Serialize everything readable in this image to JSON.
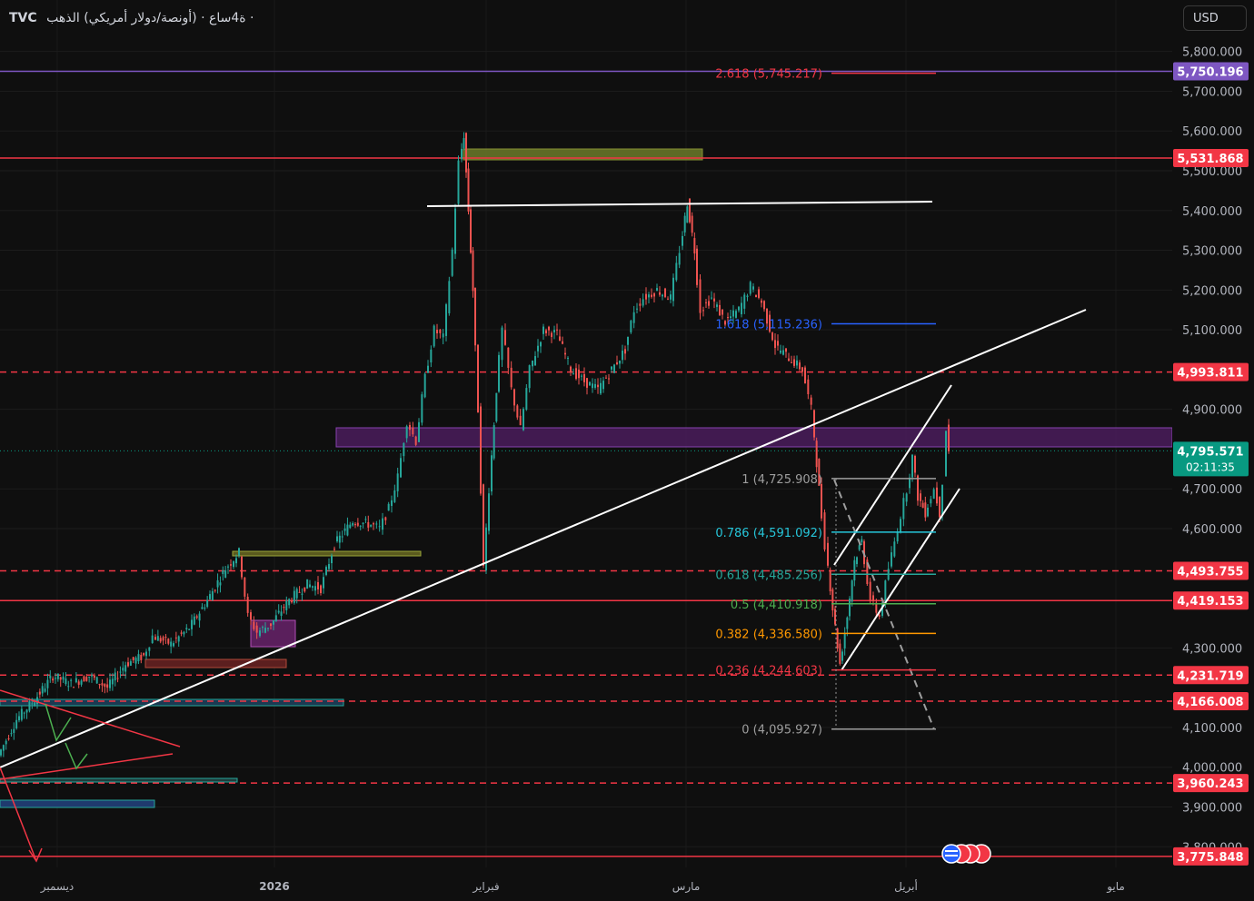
{
  "header": {
    "symbol": "TVC",
    "title": "ة4ساع · (أونصة/دولار أمريكي) الذهب ·"
  },
  "currency_button": "USD",
  "colors": {
    "bg": "#0f0f0f",
    "up": "#26a69a",
    "down": "#ef5350",
    "red_line": "#f23645",
    "purple_line": "#7e57c2",
    "price_tag": "#089981"
  },
  "chart_data": {
    "type": "candlestick",
    "title": "",
    "ylim": [
      3750,
      5870
    ],
    "y_ticks": [
      "5,800.000",
      "5,700.000",
      "5,600.000",
      "5,500.000",
      "5,400.000",
      "5,300.000",
      "5,200.000",
      "5,100.000",
      "4,900.000",
      "4,700.000",
      "4,600.000",
      "4,300.000",
      "4,100.000",
      "4,000.000",
      "3,900.000",
      "3,800.000"
    ],
    "x_ticks": [
      "ديسمبر",
      "2026",
      "فبراير",
      "مارس",
      "أبريل",
      "مايو"
    ],
    "last_price": {
      "value": 4795.571,
      "label": "4,795.571",
      "countdown": "02:11:35"
    },
    "horizontal_levels": [
      {
        "value": 5750.196,
        "label": "5,750.196",
        "style": "solid",
        "color": "#7e57c2"
      },
      {
        "value": 5531.868,
        "label": "5,531.868",
        "style": "solid",
        "color": "#f23645"
      },
      {
        "value": 4993.811,
        "label": "4,993.811",
        "style": "dashed",
        "color": "#f23645"
      },
      {
        "value": 4493.755,
        "label": "4,493.755",
        "style": "dashed",
        "color": "#f23645"
      },
      {
        "value": 4419.153,
        "label": "4,419.153",
        "style": "solid",
        "color": "#f23645"
      },
      {
        "value": 4231.719,
        "label": "4,231.719",
        "style": "dashed",
        "color": "#f23645"
      },
      {
        "value": 4166.008,
        "label": "4,166.008",
        "style": "dashed",
        "color": "#f23645"
      },
      {
        "value": 3960.243,
        "label": "3,960.243",
        "style": "dashed",
        "color": "#f23645"
      },
      {
        "value": 3775.848,
        "label": "3,775.848",
        "style": "solid",
        "color": "#f23645"
      }
    ],
    "fib_levels": [
      {
        "ratio": "2.618",
        "value": 5745.217,
        "label": "2.618 (5,745.217)",
        "color": "#f23645"
      },
      {
        "ratio": "1.618",
        "value": 5115.236,
        "label": "1.618 (5,115.236)",
        "color": "#2962ff"
      },
      {
        "ratio": "1",
        "value": 4725.908,
        "label": "1 (4,725.908)",
        "color": "#9e9e9e"
      },
      {
        "ratio": "0.786",
        "value": 4591.092,
        "label": "0.786 (4,591.092)",
        "color": "#26c6da"
      },
      {
        "ratio": "0.618",
        "value": 4485.256,
        "label": "0.618 (4,485.256)",
        "color": "#26a69a"
      },
      {
        "ratio": "0.5",
        "value": 4410.918,
        "label": "0.5 (4,410.918)",
        "color": "#4caf50"
      },
      {
        "ratio": "0.382",
        "value": 4336.58,
        "label": "0.382 (4,336.580)",
        "color": "#ff9800"
      },
      {
        "ratio": "0.236",
        "value": 4244.603,
        "label": "0.236 (4,244.603)",
        "color": "#f23645"
      },
      {
        "ratio": "0",
        "value": 4095.927,
        "label": "0 (4,095.927)",
        "color": "#9e9e9e"
      }
    ],
    "price_path": [
      [
        0,
        4030
      ],
      [
        20,
        4120
      ],
      [
        40,
        4170
      ],
      [
        60,
        4230
      ],
      [
        80,
        4210
      ],
      [
        100,
        4230
      ],
      [
        120,
        4200
      ],
      [
        140,
        4260
      ],
      [
        160,
        4280
      ],
      [
        170,
        4330
      ],
      [
        190,
        4310
      ],
      [
        210,
        4350
      ],
      [
        230,
        4420
      ],
      [
        250,
        4500
      ],
      [
        265,
        4540
      ],
      [
        275,
        4380
      ],
      [
        285,
        4340
      ],
      [
        300,
        4360
      ],
      [
        320,
        4420
      ],
      [
        340,
        4460
      ],
      [
        355,
        4450
      ],
      [
        370,
        4560
      ],
      [
        390,
        4620
      ],
      [
        410,
        4610
      ],
      [
        420,
        4600
      ],
      [
        430,
        4650
      ],
      [
        440,
        4730
      ],
      [
        450,
        4870
      ],
      [
        460,
        4820
      ],
      [
        470,
        4980
      ],
      [
        480,
        5100
      ],
      [
        490,
        5080
      ],
      [
        500,
        5300
      ],
      [
        507,
        5520
      ],
      [
        512,
        5590
      ],
      [
        517,
        5400
      ],
      [
        522,
        5200
      ],
      [
        528,
        4900
      ],
      [
        534,
        4500
      ],
      [
        540,
        4700
      ],
      [
        548,
        4950
      ],
      [
        555,
        5100
      ],
      [
        565,
        4950
      ],
      [
        575,
        4850
      ],
      [
        585,
        5000
      ],
      [
        600,
        5100
      ],
      [
        615,
        5090
      ],
      [
        630,
        5000
      ],
      [
        645,
        4970
      ],
      [
        660,
        4950
      ],
      [
        675,
        5000
      ],
      [
        690,
        5050
      ],
      [
        700,
        5150
      ],
      [
        710,
        5180
      ],
      [
        725,
        5200
      ],
      [
        740,
        5180
      ],
      [
        750,
        5300
      ],
      [
        758,
        5420
      ],
      [
        766,
        5300
      ],
      [
        773,
        5150
      ],
      [
        785,
        5180
      ],
      [
        800,
        5120
      ],
      [
        815,
        5150
      ],
      [
        828,
        5210
      ],
      [
        840,
        5170
      ],
      [
        855,
        5060
      ],
      [
        870,
        5030
      ],
      [
        885,
        5000
      ],
      [
        895,
        4900
      ],
      [
        903,
        4700
      ],
      [
        910,
        4560
      ],
      [
        918,
        4400
      ],
      [
        926,
        4260
      ],
      [
        934,
        4380
      ],
      [
        942,
        4520
      ],
      [
        950,
        4570
      ],
      [
        960,
        4420
      ],
      [
        970,
        4380
      ],
      [
        980,
        4500
      ],
      [
        990,
        4600
      ],
      [
        1000,
        4700
      ],
      [
        1006,
        4780
      ],
      [
        1012,
        4680
      ],
      [
        1020,
        4640
      ],
      [
        1030,
        4700
      ],
      [
        1036,
        4640
      ],
      [
        1040,
        4720
      ],
      [
        1043,
        4850
      ],
      [
        1046,
        4795
      ]
    ]
  }
}
